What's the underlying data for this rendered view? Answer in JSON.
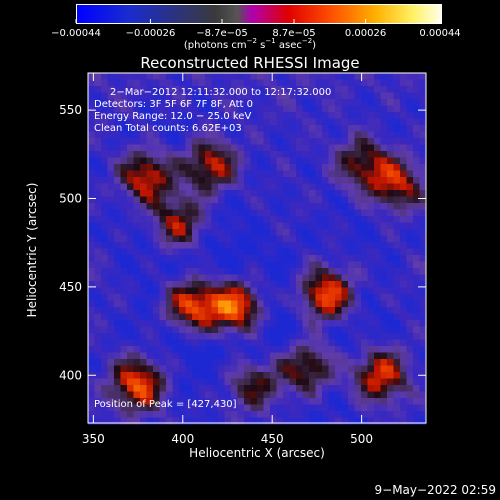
{
  "colorbar": {
    "tick_labels": [
      "−0.00044",
      "−0.00026",
      "−8.7e−05",
      "8.7e−05",
      "0.00026",
      "0.00044"
    ],
    "tick_values": [
      -0.00044,
      -0.00026,
      -8.7e-05,
      8.7e-05,
      0.00026,
      0.00044
    ],
    "units_main": "(photons cm",
    "units_exp1": "−2",
    "units_mid": " s",
    "units_exp2": "−1",
    "units_end": " asec",
    "units_exp3": "−2",
    "units_close": ")"
  },
  "plot": {
    "title": "Reconstructed RHESSI Image",
    "info_lines": [
      "2−Mar−2012 12:11:32.000 to 12:17:32.000",
      "Detectors: 3F 5F 6F 7F 8F, Att 0",
      "Energy Range: 12.0 − 25.0 keV",
      "Clean     Total counts: 6.62E+03"
    ],
    "peak_label": "Position of Peak = [427,430]"
  },
  "footer": {
    "timestamp": "9−May−2022 02:59"
  },
  "chart_data": {
    "type": "heatmap",
    "title": "Reconstructed RHESSI Image",
    "xlabel": "Heliocentric X (arcsec)",
    "ylabel": "Heliocentric Y (arcsec)",
    "xlim": [
      347,
      536
    ],
    "ylim": [
      373,
      571
    ],
    "x_ticks": [
      350,
      400,
      450,
      500
    ],
    "y_ticks": [
      400,
      450,
      500,
      550
    ],
    "colorscale_range": [
      -0.00044,
      0.00044
    ],
    "peak_position": [
      427,
      430
    ],
    "grid": false,
    "bright_sources": [
      {
        "x": 380,
        "y": 512,
        "level": 0.85
      },
      {
        "x": 415,
        "y": 518,
        "level": 0.8
      },
      {
        "x": 398,
        "y": 486,
        "level": 0.75
      },
      {
        "x": 430,
        "y": 438,
        "level": 1.0
      },
      {
        "x": 405,
        "y": 440,
        "level": 0.9
      },
      {
        "x": 375,
        "y": 395,
        "level": 0.85
      },
      {
        "x": 480,
        "y": 445,
        "level": 0.9
      },
      {
        "x": 470,
        "y": 405,
        "level": 0.75
      },
      {
        "x": 520,
        "y": 508,
        "level": 0.7
      },
      {
        "x": 500,
        "y": 520,
        "level": 0.6
      },
      {
        "x": 510,
        "y": 400,
        "level": 0.8
      },
      {
        "x": 440,
        "y": 395,
        "level": 0.6
      }
    ]
  }
}
